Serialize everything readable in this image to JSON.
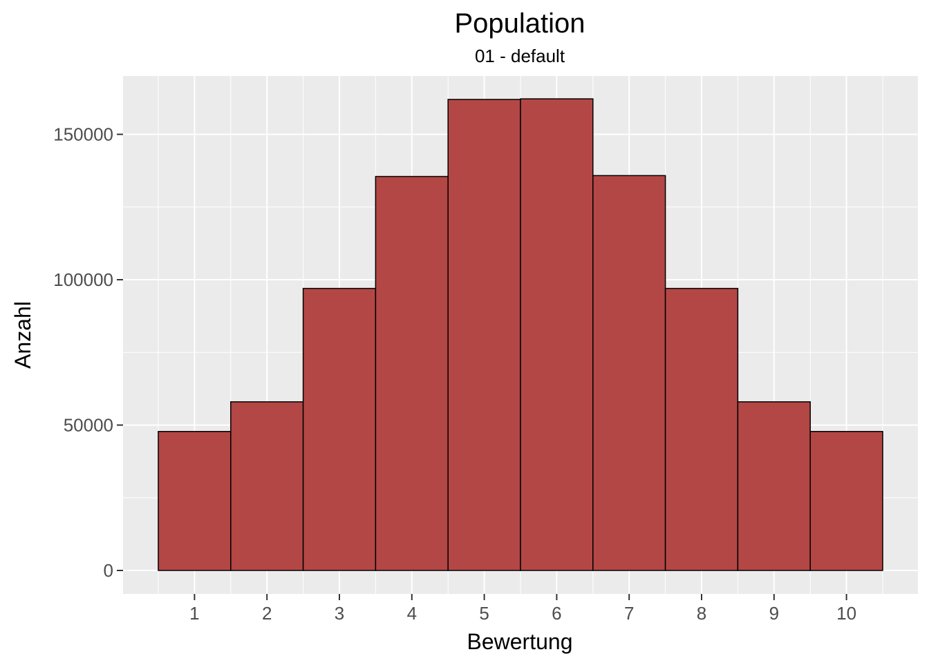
{
  "chart_data": {
    "type": "bar",
    "title": "Population",
    "subtitle": "01 - default",
    "xlabel": "Bewertung",
    "ylabel": "Anzahl",
    "categories": [
      "1",
      "2",
      "3",
      "4",
      "5",
      "6",
      "7",
      "8",
      "9",
      "10"
    ],
    "values": [
      47800,
      58000,
      97000,
      135500,
      162000,
      162200,
      135800,
      97000,
      58000,
      47800
    ],
    "xlim": [
      0.5,
      10.5
    ],
    "ylim": [
      0,
      165000
    ],
    "yticks": [
      0,
      50000,
      100000,
      150000
    ],
    "ytick_labels": [
      "0",
      "50000",
      "100000",
      "150000"
    ],
    "grid": true,
    "legend": "none",
    "colors": {
      "bar_fill": "#b34745",
      "bar_outline": "#000000",
      "panel_background": "#ebebeb",
      "grid": "#ffffff"
    }
  }
}
